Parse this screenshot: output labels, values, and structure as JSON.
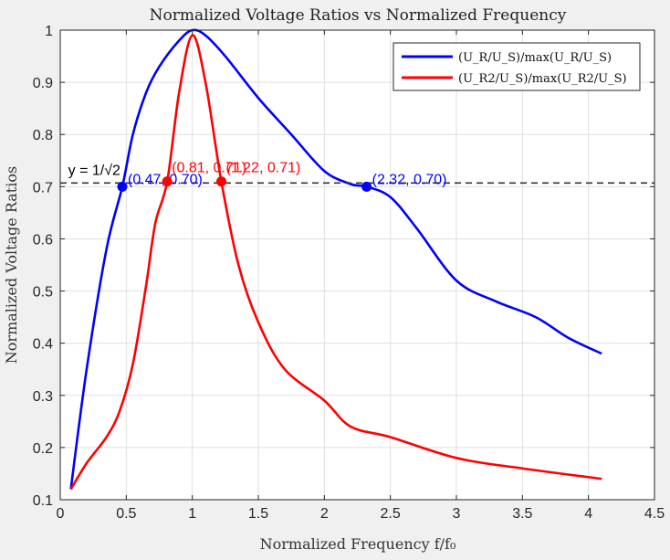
{
  "chart_data": {
    "type": "line",
    "title": "Normalized Voltage Ratios vs Normalized Frequency",
    "xlabel": "Normalized Frequency f/f₀",
    "ylabel": "Normalized Voltage Ratios",
    "xlim": [
      0,
      4.5
    ],
    "ylim": [
      0.1,
      1.0
    ],
    "xticks": [
      0,
      0.5,
      1,
      1.5,
      2,
      2.5,
      3,
      3.5,
      4,
      4.5
    ],
    "xtick_labels": [
      "0",
      "0.5",
      "1",
      "1.5",
      "2",
      "2.5",
      "3",
      "3.5",
      "4",
      "4.5"
    ],
    "yticks": [
      0.1,
      0.2,
      0.3,
      0.4,
      0.5,
      0.6,
      0.7,
      0.8,
      0.9,
      1.0
    ],
    "ytick_labels": [
      "0.1",
      "0.2",
      "0.3",
      "0.4",
      "0.5",
      "0.6",
      "0.7",
      "0.8",
      "0.9",
      "1"
    ],
    "grid": true,
    "legend_position": "top-right",
    "series": [
      {
        "name": "(U_R/U_S)/max(U_R/U_S)",
        "color": "#0000ff",
        "x": [
          0.08,
          0.2,
          0.35,
          0.47,
          0.55,
          0.65,
          0.75,
          0.9,
          1.0,
          1.1,
          1.25,
          1.5,
          1.75,
          2.0,
          2.2,
          2.32,
          2.5,
          2.7,
          3.0,
          3.3,
          3.6,
          3.85,
          4.1
        ],
        "y": [
          0.12,
          0.35,
          0.58,
          0.7,
          0.8,
          0.88,
          0.93,
          0.98,
          1.0,
          0.99,
          0.95,
          0.87,
          0.8,
          0.73,
          0.705,
          0.7,
          0.68,
          0.62,
          0.52,
          0.48,
          0.45,
          0.41,
          0.38
        ]
      },
      {
        "name": "(U_R2/U_S)/max(U_R2/U_S)",
        "color": "#ff0000",
        "x": [
          0.08,
          0.2,
          0.35,
          0.45,
          0.55,
          0.65,
          0.72,
          0.81,
          0.9,
          1.0,
          1.1,
          1.22,
          1.35,
          1.5,
          1.7,
          2.0,
          2.2,
          2.5,
          3.0,
          3.5,
          4.1
        ],
        "y": [
          0.12,
          0.17,
          0.22,
          0.27,
          0.36,
          0.51,
          0.63,
          0.71,
          0.88,
          0.99,
          0.9,
          0.71,
          0.55,
          0.44,
          0.35,
          0.29,
          0.24,
          0.22,
          0.18,
          0.16,
          0.14
        ]
      }
    ],
    "reference_line": {
      "y": 0.7071,
      "label": "y = 1/√2",
      "color": "#333333",
      "style": "dashed"
    },
    "markers": [
      {
        "x": 0.47,
        "y": 0.7,
        "label": "(0.47, 0.70)",
        "color": "#0000ff"
      },
      {
        "x": 2.32,
        "y": 0.7,
        "label": "(2.32, 0.70)",
        "color": "#0000ff"
      },
      {
        "x": 0.81,
        "y": 0.71,
        "label": "(0.81, 0.71)",
        "color": "#ff0000"
      },
      {
        "x": 1.22,
        "y": 0.71,
        "label": "(1.22, 0.71)",
        "color": "#ff0000"
      }
    ]
  }
}
